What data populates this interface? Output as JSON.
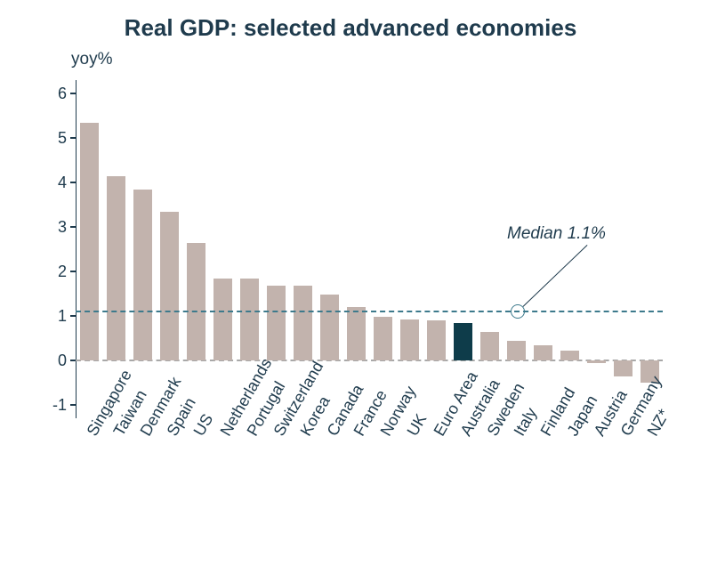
{
  "chart": {
    "type": "bar",
    "title": "Real GDP: selected advanced economies",
    "title_fontsize": 26,
    "title_color": "#1f3b4d",
    "y_axis_title": "yoy%",
    "y_axis_title_fontsize": 19,
    "y_axis_title_color": "#1f3b4d",
    "background_color": "#ffffff",
    "categories": [
      "Singapore",
      "Taiwan",
      "Denmark",
      "Spain",
      "US",
      "Netherlands",
      "Portugal",
      "Switzerland",
      "Korea",
      "Canada",
      "France",
      "Norway",
      "UK",
      "Euro Area",
      "Australia",
      "Sweden",
      "Italy",
      "Finland",
      "Japan",
      "Austria",
      "Germany",
      "NZ*"
    ],
    "values": [
      5.35,
      4.15,
      3.85,
      3.35,
      2.65,
      1.85,
      1.85,
      1.68,
      1.68,
      1.48,
      1.2,
      0.98,
      0.92,
      0.9,
      0.85,
      0.65,
      0.45,
      0.35,
      0.22,
      -0.05,
      -0.35,
      -0.5
    ],
    "bar_colors": [
      "#c2b3ad",
      "#c2b3ad",
      "#c2b3ad",
      "#c2b3ad",
      "#c2b3ad",
      "#c2b3ad",
      "#c2b3ad",
      "#c2b3ad",
      "#c2b3ad",
      "#c2b3ad",
      "#c2b3ad",
      "#c2b3ad",
      "#c2b3ad",
      "#c2b3ad",
      "#0e3c4a",
      "#c2b3ad",
      "#c2b3ad",
      "#c2b3ad",
      "#c2b3ad",
      "#c2b3ad",
      "#c2b3ad",
      "#c2b3ad"
    ],
    "bar_width_ratio": 0.7,
    "ylim": [
      -1.3,
      6.3
    ],
    "yticks": [
      -1,
      0,
      1,
      2,
      3,
      4,
      5,
      6
    ],
    "ytick_fontsize": 18,
    "ytick_color": "#1f3b4d",
    "xlabel_fontsize": 18,
    "xlabel_color": "#1f3b4d",
    "xlabel_rotation_deg": -60,
    "zero_line_color": "#a8a8a8",
    "zero_line_dash": "6,5",
    "zero_line_width": 2,
    "median_value": 1.1,
    "median_label": "Median 1.1%",
    "median_label_fontsize": 19,
    "median_line_color": "#3d7a8c",
    "median_line_dash": "7,6",
    "median_line_width": 2.5,
    "annotation_circle_stroke": "#3d7a8c",
    "annotation_circle_stroke_width": 1.5,
    "annotation_circle_radius": 8,
    "annotation_line_color": "#1f3b4d",
    "annotation_line_width": 1.2,
    "y_axis_line_color": "#1f3b4d",
    "y_axis_line_width": 1.2
  }
}
